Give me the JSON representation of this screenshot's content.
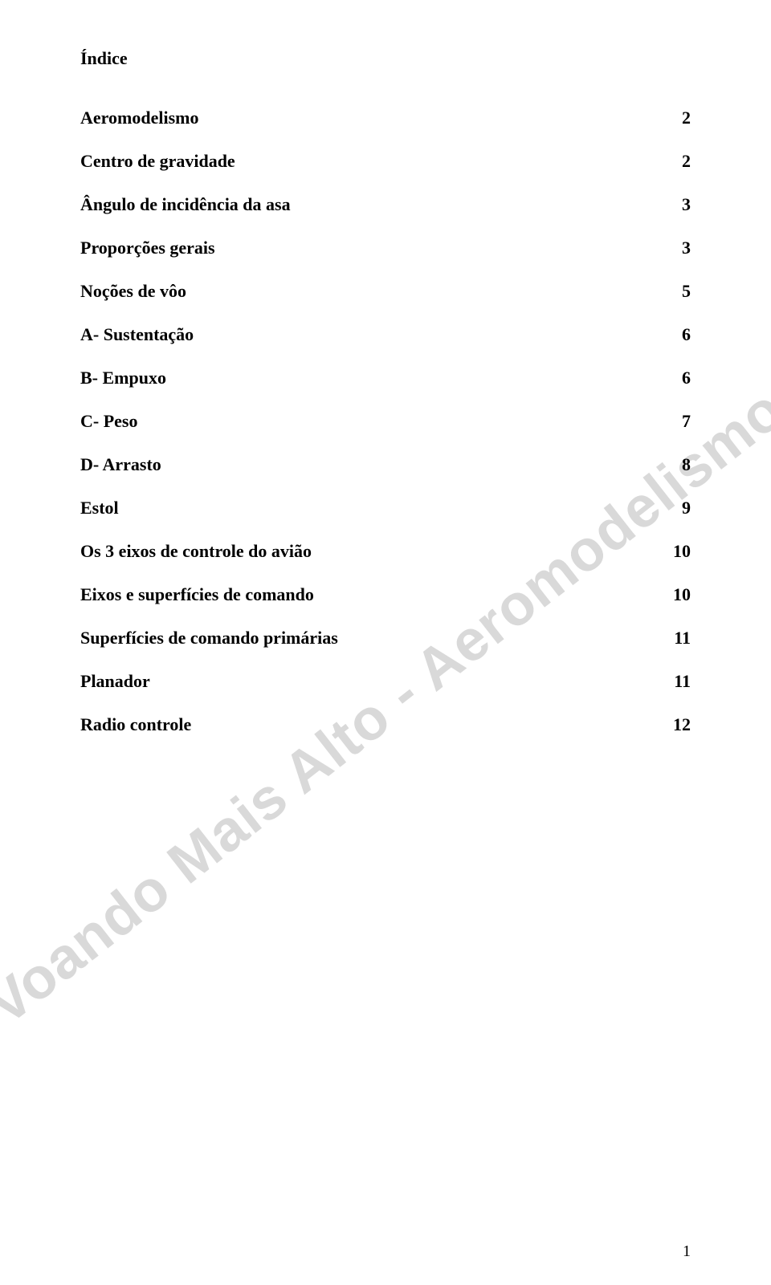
{
  "title": "Índice",
  "watermark": "Voando Mais Alto - Aeromodelismo",
  "page_number": "1",
  "toc": [
    {
      "label": "Aeromodelismo",
      "page": "2"
    },
    {
      "label": "Centro de gravidade",
      "page": "2"
    },
    {
      "label": "Ângulo de incidência da asa",
      "page": "3"
    },
    {
      "label": "Proporções gerais",
      "page": "3"
    },
    {
      "label": "Noções de vôo",
      "page": "5"
    },
    {
      "label": "A- Sustentação",
      "page": "6"
    },
    {
      "label": "B- Empuxo",
      "page": "6"
    },
    {
      "label": "C- Peso",
      "page": "7"
    },
    {
      "label": "D- Arrasto",
      "page": "8"
    },
    {
      "label": "Estol",
      "page": "9"
    },
    {
      "label": "Os 3 eixos de controle do avião",
      "page": "10"
    },
    {
      "label": "Eixos e superfícies de comando",
      "page": "10"
    },
    {
      "label": "Superfícies de comando primárias",
      "page": "11"
    },
    {
      "label": "Planador",
      "page": "11"
    },
    {
      "label": "Radio controle",
      "page": "12"
    }
  ],
  "style": {
    "background_color": "#ffffff",
    "text_color": "#000000",
    "watermark_color": "#d9d9d9",
    "title_fontsize": 22,
    "row_fontsize": 22,
    "watermark_fontsize": 72,
    "watermark_rotation_deg": -38,
    "font_family_body": "Comic Sans MS",
    "font_family_pagenum": "Times New Roman"
  }
}
